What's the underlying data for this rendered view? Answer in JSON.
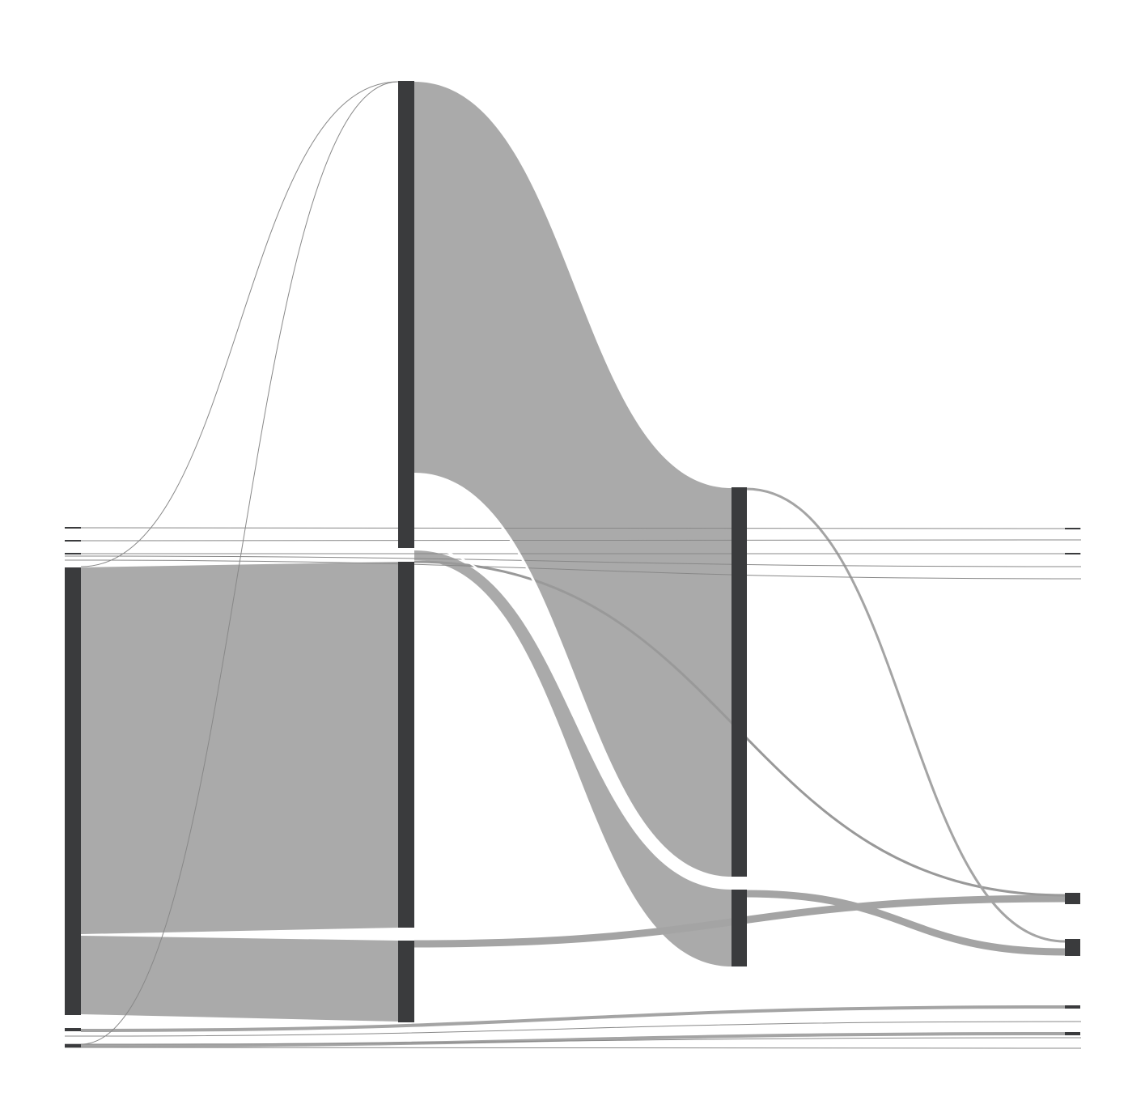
{
  "diagram": {
    "type": "sankey",
    "title": "",
    "labels_visible": false,
    "columns": 4,
    "colors": {
      "node": "#3a3b3d",
      "link_fill": "#aaaaaa",
      "thin_link": "#888888",
      "medium_link": "#a4a4a4",
      "background": "#ffffff"
    },
    "node_count": 16,
    "link_count": 19
  }
}
